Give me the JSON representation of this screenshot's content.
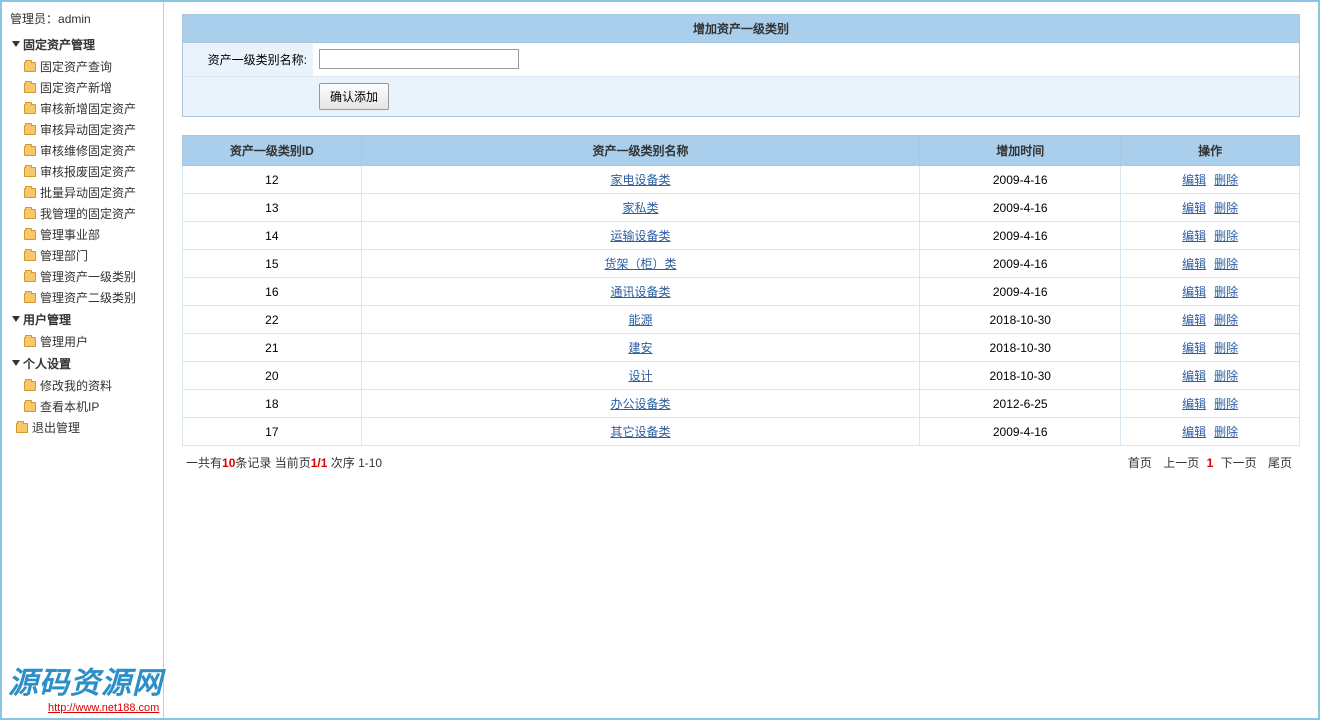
{
  "sidebar": {
    "admin_label": "管理员：",
    "admin_name": "admin",
    "groups": [
      {
        "title": "固定资产管理",
        "items": [
          "固定资产查询",
          "固定资产新增",
          "审核新增固定资产",
          "审核异动固定资产",
          "审核维修固定资产",
          "审核报废固定资产",
          "批量异动固定资产",
          "我管理的固定资产",
          "管理事业部",
          "管理部门",
          "管理资产一级类别",
          "管理资产二级类别"
        ]
      },
      {
        "title": "用户管理",
        "items": [
          "管理用户"
        ]
      },
      {
        "title": "个人设置",
        "items": [
          "修改我的资料",
          "查看本机IP"
        ]
      }
    ],
    "logout": "退出管理"
  },
  "panel": {
    "title": "增加资产一级类别",
    "form_label": "资产一级类别名称:",
    "submit_label": "确认添加"
  },
  "table": {
    "headers": [
      "资产一级类别ID",
      "资产一级类别名称",
      "增加时间",
      "操作"
    ],
    "edit_label": "编辑",
    "delete_label": "删除",
    "rows": [
      {
        "id": "12",
        "name": "家电设备类",
        "date": "2009-4-16"
      },
      {
        "id": "13",
        "name": "家私类",
        "date": "2009-4-16"
      },
      {
        "id": "14",
        "name": "运输设备类",
        "date": "2009-4-16"
      },
      {
        "id": "15",
        "name": "货架（柜）类",
        "date": "2009-4-16"
      },
      {
        "id": "16",
        "name": "通讯设备类",
        "date": "2009-4-16"
      },
      {
        "id": "22",
        "name": "能源",
        "date": "2018-10-30"
      },
      {
        "id": "21",
        "name": "建安",
        "date": "2018-10-30"
      },
      {
        "id": "20",
        "name": "设计",
        "date": "2018-10-30"
      },
      {
        "id": "18",
        "name": "办公设备类",
        "date": "2012-6-25"
      },
      {
        "id": "17",
        "name": "其它设备类",
        "date": "2009-4-16"
      }
    ]
  },
  "pager": {
    "total_prefix": "一共有",
    "total_count": "10",
    "total_mid": "条记录 当前页",
    "page_frac": "1/1",
    "range_label": " 次序 1-10",
    "first": "首页",
    "prev": "上一页",
    "curr": "1",
    "next": "下一页",
    "last": "尾页"
  },
  "watermark": {
    "title": "源码资源网",
    "url": "http://www.net188.com"
  }
}
